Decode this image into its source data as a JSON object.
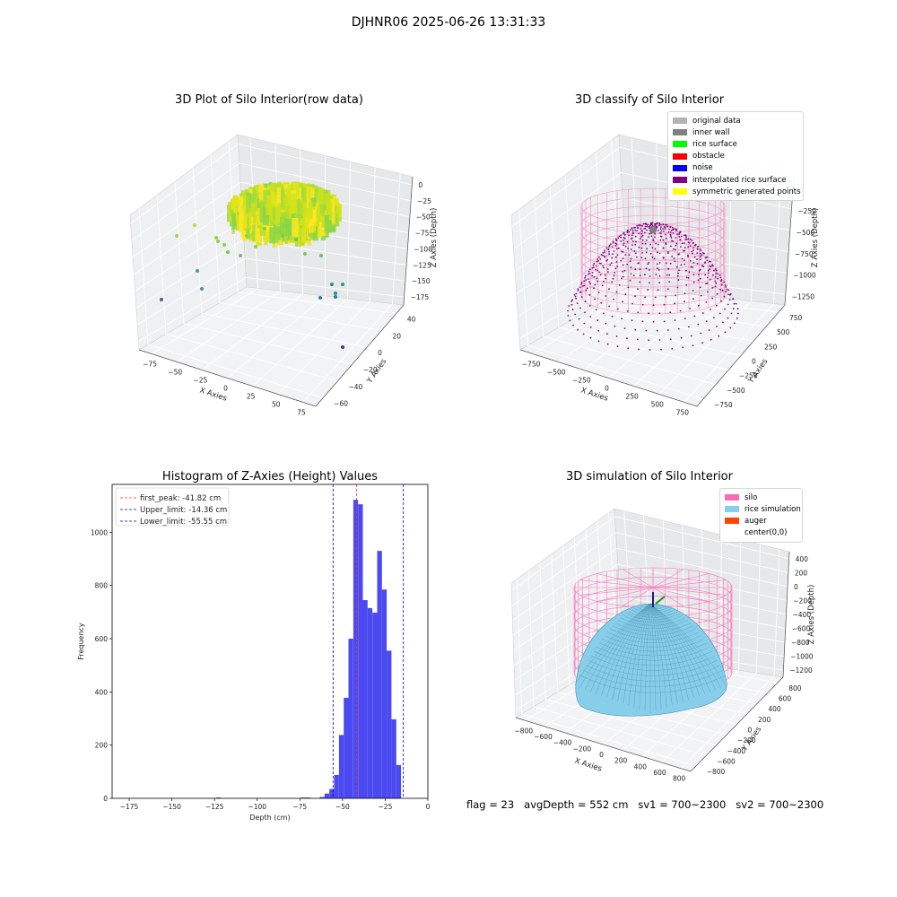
{
  "figure": {
    "suptitle": "DJHNR06 2025-06-26 13:31:33",
    "status": {
      "flag": "flag = 23",
      "avg_depth": "avgDepth = 552 cm",
      "sv1": "sv1 = 700~2300",
      "sv2": "sv2 = 700~2300"
    }
  },
  "chart_data": [
    {
      "type": "scatter3d",
      "title": "3D Plot of Silo Interior(row data)",
      "xlabel": "X Axies",
      "ylabel": "Y Axies",
      "zlabel": "Z Axies (Depth)",
      "x_ticks": [
        "−75",
        "−50",
        "−25",
        "0",
        "25",
        "50",
        "75"
      ],
      "y_ticks": [
        "40",
        "20",
        "0",
        "−20",
        "−40",
        "−60"
      ],
      "z_ticks": [
        "0",
        "−25",
        "−50",
        "−75",
        "−100",
        "−125",
        "−150",
        "−175"
      ],
      "xlim": [
        -85,
        85
      ],
      "ylim": [
        -60,
        45
      ],
      "zlim": [
        -190,
        0
      ],
      "colormap": "viridis",
      "grid": true
    },
    {
      "type": "scatter3d",
      "title": "3D classify of Silo Interior",
      "xlabel": "X Axies",
      "ylabel": "Y Axies",
      "zlabel": "Z Axies (Depth)",
      "x_ticks": [
        "−750",
        "−500",
        "−250",
        "0",
        "250",
        "500",
        "750"
      ],
      "y_ticks": [
        "750",
        "500",
        "250",
        "0",
        "−250",
        "−500",
        "−750"
      ],
      "z_ticks": [
        "0",
        "−250",
        "−500",
        "−750",
        "−1000",
        "−1250"
      ],
      "grid": true,
      "legend": {
        "placement": "top-right",
        "items": [
          {
            "label": "original data",
            "color": "#b3b3b3"
          },
          {
            "label": "inner wall",
            "color": "#808080"
          },
          {
            "label": "rice surface",
            "color": "#00ff00"
          },
          {
            "label": "obstacle",
            "color": "#ff0000"
          },
          {
            "label": "noise",
            "color": "#0000ff"
          },
          {
            "label": "interpolated rice surface",
            "color": "#800080"
          },
          {
            "label": "symmetric generated points",
            "color": "#ffff00"
          }
        ]
      },
      "silo_color": "#ff77bb"
    },
    {
      "type": "bar",
      "title": "Histogram of Z-Axies (Height) Values",
      "xlabel": "Depth (cm)",
      "ylabel": "Frequency",
      "xlim": [
        -185,
        0
      ],
      "ylim": [
        0,
        1180
      ],
      "x_ticks": [
        -175,
        -150,
        -125,
        -100,
        -75,
        -50,
        -25,
        0
      ],
      "y_ticks": [
        0,
        200,
        400,
        600,
        800,
        1000
      ],
      "bar_color": "#4a4af0",
      "bin_width": 2.8,
      "bins": [
        {
          "x": -124,
          "value": 3
        },
        {
          "x": -74.5,
          "value": 3
        },
        {
          "x": -71.7,
          "value": 3
        },
        {
          "x": -63.3,
          "value": 5
        },
        {
          "x": -60.5,
          "value": 18
        },
        {
          "x": -57.7,
          "value": 35
        },
        {
          "x": -54.9,
          "value": 88
        },
        {
          "x": -52.1,
          "value": 238
        },
        {
          "x": -49.3,
          "value": 378
        },
        {
          "x": -46.5,
          "value": 600
        },
        {
          "x": -43.7,
          "value": 1122
        },
        {
          "x": -40.9,
          "value": 1105
        },
        {
          "x": -38.1,
          "value": 745
        },
        {
          "x": -35.3,
          "value": 715
        },
        {
          "x": -32.5,
          "value": 698
        },
        {
          "x": -29.7,
          "value": 930
        },
        {
          "x": -26.9,
          "value": 785
        },
        {
          "x": -24.1,
          "value": 555
        },
        {
          "x": -21.3,
          "value": 297
        },
        {
          "x": -18.5,
          "value": 125
        }
      ],
      "vlines": [
        {
          "label": "first_peak: -41.82 cm",
          "x": -41.82,
          "color": "#ff3333"
        },
        {
          "label": "Upper_limit: -14.36 cm",
          "x": -14.36,
          "color": "#0000cc"
        },
        {
          "label": "Lower_limit: -55.55 cm",
          "x": -55.55,
          "color": "#0000cc"
        }
      ],
      "legend": {
        "placement": "top-left"
      }
    },
    {
      "type": "surface3d",
      "title": "3D simulation of Silo Interior",
      "xlabel": "X Axies",
      "ylabel": "Y Axies",
      "zlabel": "Z Axies (Depth)",
      "x_ticks": [
        "−800",
        "−600",
        "−400",
        "−200",
        "0",
        "200",
        "400",
        "600",
        "800"
      ],
      "y_ticks": [
        "800",
        "600",
        "400",
        "200",
        "0",
        "−200",
        "−400",
        "−600",
        "−800"
      ],
      "z_ticks": [
        "400",
        "200",
        "0",
        "−200",
        "−400",
        "−600",
        "−800",
        "−1000",
        "−1200"
      ],
      "grid": true,
      "legend": {
        "placement": "top-right",
        "items": [
          {
            "label": "silo",
            "color": "#ff69b4"
          },
          {
            "label": "rice simulation",
            "color": "#87ceeb"
          },
          {
            "label": "auger",
            "color": "#ff4500"
          },
          {
            "label": "center(0,0)",
            "color": "#ffffff"
          }
        ]
      }
    }
  ]
}
